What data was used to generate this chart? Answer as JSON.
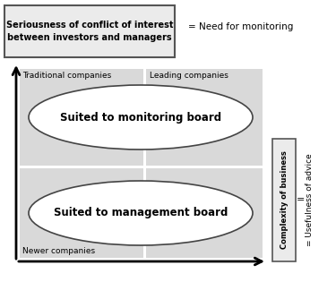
{
  "fig_width": 3.75,
  "fig_height": 3.15,
  "dpi": 100,
  "bg_color": "#ffffff",
  "gray_light": "#d9d9d9",
  "box_border": "#555555",
  "ellipse_border": "#444444",
  "text_color": "#000000",
  "top_box_text": "Seriousness of conflict of interest\nbetween investors and managers",
  "top_right_text": "= Need for monitoring",
  "right_box_text": "Complexity of business",
  "right_text": "= Usefulness of advice",
  "label_traditional": "Traditional companies",
  "label_leading": "Leading companies",
  "label_newer": "Newer companies",
  "ellipse_top_text": "Suited to monitoring board",
  "ellipse_bottom_text": "Suited to management board"
}
